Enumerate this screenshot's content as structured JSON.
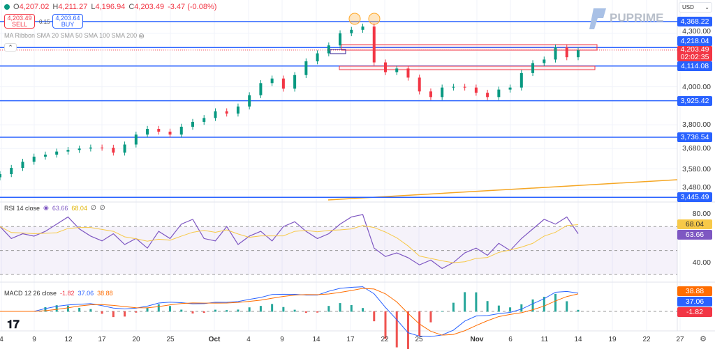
{
  "header": {
    "open_label": "O",
    "open": "4,207.02",
    "high_label": "H",
    "high": "4,211.27",
    "low_label": "L",
    "low": "4,196.94",
    "close_label": "C",
    "close": "4,203.49",
    "change": "-3.47 (-0.08%)"
  },
  "trade": {
    "sell_price": "4,203.49",
    "sell_label": "SELL",
    "spread": "0.15",
    "buy_price": "4,203.64",
    "buy_label": "BUY"
  },
  "indicator_ma": "MA Ribbon SMA 20 SMA 50 SMA 100 SMA 200",
  "brand": "PUPRIME",
  "currency": "USD",
  "colors": {
    "bull": "#089981",
    "bear": "#f23645",
    "level": "#2962ff",
    "rsi": "#7e57c2",
    "rsi_ma": "#f7c948",
    "macd": "#2962ff",
    "signal": "#ff6d00"
  },
  "price_axis": {
    "ticks": [
      "4,300.00",
      "4,000.00",
      "3,800.00",
      "3,680.00",
      "3,580.00",
      "3,480.00"
    ],
    "tick_values": [
      4300,
      4000,
      3800,
      3680,
      3580,
      3480
    ],
    "scale": "log"
  },
  "levels": [
    {
      "value": 4368.22,
      "label": "4,368.22"
    },
    {
      "value": 4218.04,
      "label": "4,218.04"
    },
    {
      "value": 4114.08,
      "label": "4,114.08"
    },
    {
      "value": 3925.42,
      "label": "3,925.42"
    },
    {
      "value": 3736.54,
      "label": "3,736.54"
    },
    {
      "value": 3445.49,
      "label": "3,445.49"
    }
  ],
  "current": {
    "price": 4203.49,
    "label": "4,203.49",
    "countdown": "02:02:35"
  },
  "chart_data": {
    "type": "candlestick",
    "closes": [
      3555,
      3585,
      3615,
      3640,
      3650,
      3665,
      3673,
      3680,
      3685,
      3684,
      3660,
      3700,
      3750,
      3779,
      3765,
      3750,
      3790,
      3815,
      3835,
      3870,
      3858,
      3895,
      3955,
      4020,
      4045,
      3990,
      4064,
      4140,
      4185,
      4230,
      4300,
      4320,
      4339,
      4134,
      4080,
      4100,
      4050,
      3975,
      3945,
      3996,
      4000,
      3996,
      3968,
      3945,
      3985,
      3996,
      4075,
      4130,
      4150,
      4218,
      4163,
      4203
    ],
    "x_labels": [
      "4",
      "9",
      "12",
      "17",
      "20",
      "25",
      "Oct",
      "4",
      "9",
      "14",
      "17",
      "22",
      "25",
      "Nov",
      "6",
      "11",
      "14",
      "19",
      "22",
      "27"
    ]
  },
  "rsi": {
    "legend": "RSI 14 close",
    "value": "63.66",
    "ma_value": "68.04",
    "extra1": "∅",
    "extra2": "∅",
    "ticks": [
      "80.00",
      "40.00"
    ],
    "values": [
      70,
      60,
      64,
      62,
      66,
      72,
      78,
      68,
      62,
      58,
      64,
      55,
      60,
      52,
      66,
      60,
      72,
      76,
      60,
      58,
      70,
      55,
      62,
      66,
      58,
      70,
      74,
      66,
      60,
      64,
      72,
      78,
      80,
      52,
      45,
      48,
      44,
      38,
      42,
      35,
      40,
      48,
      52,
      46,
      56,
      50,
      60,
      68,
      76,
      72,
      78,
      64
    ]
  },
  "macd": {
    "legend": "MACD 12 26 close",
    "hist": "-1.82",
    "macd": "37.06",
    "signal": "38.88"
  }
}
